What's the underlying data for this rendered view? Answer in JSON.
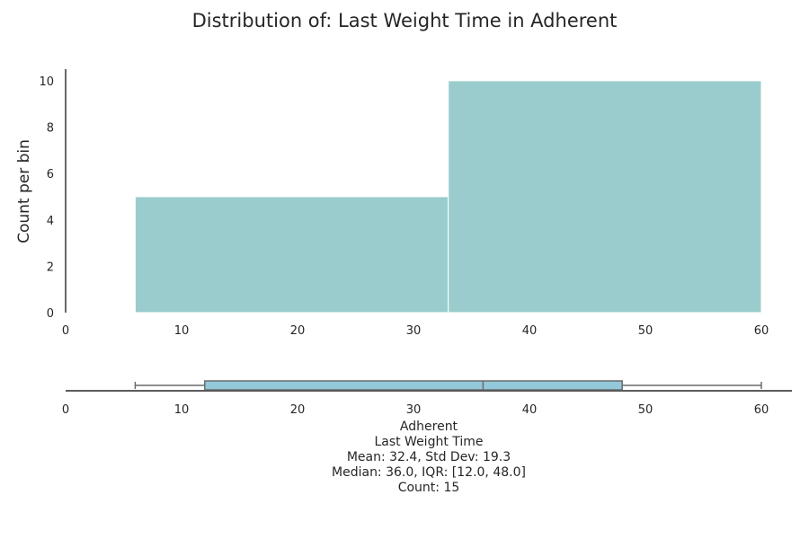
{
  "chart_data": [
    {
      "type": "histogram",
      "title": "Distribution of: Last Weight Time in Adherent",
      "xlabel": "",
      "ylabel": "Count per bin",
      "xlim": [
        0,
        60
      ],
      "ylim": [
        0,
        10.5
      ],
      "x_ticks": [
        "0",
        "10",
        "20",
        "30",
        "40",
        "50",
        "60"
      ],
      "y_ticks": [
        "0",
        "2",
        "4",
        "6",
        "8",
        "10"
      ],
      "grid": false,
      "color": "#9acccd",
      "bins": [
        {
          "start": 6,
          "end": 33,
          "count": 5
        },
        {
          "start": 33,
          "end": 60,
          "count": 10
        }
      ]
    },
    {
      "type": "box",
      "xlim": [
        0,
        60
      ],
      "x_ticks": [
        "0",
        "10",
        "20",
        "30",
        "40",
        "50",
        "60"
      ],
      "color": "#92c8da",
      "min": 6,
      "q1": 12,
      "median": 36,
      "q3": 48,
      "max": 60,
      "summary_lines": [
        "Adherent",
        "Last Weight Time",
        "Mean: 32.4, Std Dev: 19.3",
        "Median: 36.0, IQR: [12.0, 48.0]",
        "Count: 15"
      ]
    }
  ]
}
